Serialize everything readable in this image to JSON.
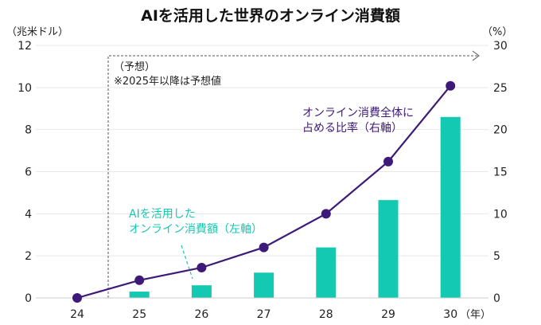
{
  "chart_data": {
    "type": "bar+line",
    "title": "AIを活用した世界のオンライン消費額",
    "left_axis_unit": "（兆米ドル）",
    "right_axis_unit": "（%）",
    "x_unit": "（年）",
    "categories": [
      "24",
      "25",
      "26",
      "27",
      "28",
      "29",
      "30"
    ],
    "left_ylim": [
      0,
      12
    ],
    "left_ticks": [
      "0",
      "2",
      "4",
      "6",
      "8",
      "10",
      "12"
    ],
    "right_ylim": [
      0,
      30
    ],
    "right_ticks": [
      "0",
      "5",
      "10",
      "15",
      "20",
      "25",
      "30"
    ],
    "grid": true,
    "forecast_label": "（予想）",
    "forecast_note": "※2025年以降は予想値",
    "series": [
      {
        "type": "bar",
        "axis": "left",
        "label_lines": [
          "AIを活用した",
          "オンライン消費額（左軸）"
        ],
        "color": "#14c9b2",
        "values": [
          0,
          0.3,
          0.6,
          1.2,
          2.4,
          4.65,
          8.6
        ]
      },
      {
        "type": "line",
        "axis": "right",
        "label_lines": [
          "オンライン消費全体に",
          "占める比率（右軸）"
        ],
        "color": "#3d1a78",
        "values": [
          0,
          2.1,
          3.6,
          6.0,
          10.0,
          16.2,
          25.2
        ]
      }
    ]
  }
}
